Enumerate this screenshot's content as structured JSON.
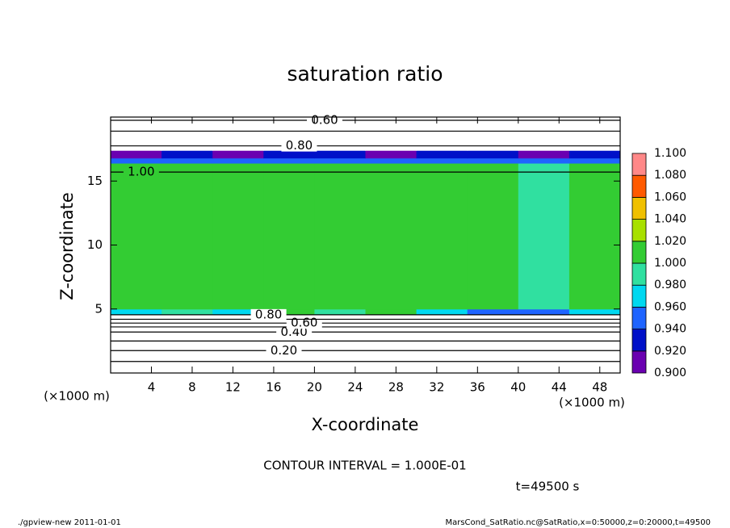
{
  "chart_data": {
    "type": "contour",
    "title": "saturation ratio",
    "xlabel": "X-coordinate",
    "ylabel": "Z-coordinate",
    "x_unit": "(×1000 m)",
    "y_unit": "(×1000 m)",
    "annotation": "CONTOUR INTERVAL = 1.000E-01",
    "time_label": "t=49500 s",
    "footer_left": "./gpview-new  2011-01-01",
    "footer_right": "MarsCond_SatRatio.nc@SatRatio,x=0:50000,z=0:20000,t=49500",
    "xlim": [
      0,
      50
    ],
    "ylim": [
      0,
      20
    ],
    "xticks": [
      4,
      8,
      12,
      16,
      20,
      24,
      28,
      32,
      36,
      40,
      44,
      48
    ],
    "yticks": [
      5,
      10,
      15
    ],
    "x_edges": [
      0,
      5,
      10,
      15,
      20,
      25,
      30,
      35,
      40,
      45,
      50
    ],
    "z_edges": [
      0,
      4.6,
      5,
      16.4,
      16.8,
      17.4,
      20
    ],
    "values": [
      [
        0.5,
        0.5,
        0.5,
        0.5,
        0.5,
        0.5,
        0.5,
        0.5,
        0.5,
        0.5
      ],
      [
        0.97,
        0.99,
        0.97,
        1.01,
        0.99,
        1.01,
        0.97,
        0.96,
        0.95,
        0.97
      ],
      [
        1.01,
        1.01,
        1.01,
        1.01,
        1.01,
        1.01,
        1.01,
        1.01,
        1.0,
        1.01
      ],
      [
        0.95,
        0.96,
        0.95,
        0.96,
        0.95,
        0.96,
        0.95,
        0.96,
        0.95,
        0.96
      ],
      [
        0.92,
        0.93,
        0.92,
        0.93,
        0.93,
        0.92,
        0.93,
        0.93,
        0.92,
        0.93
      ],
      [
        0.7,
        0.7,
        0.7,
        0.7,
        0.7,
        0.7,
        0.7,
        0.7,
        0.7,
        0.7
      ]
    ],
    "contours": {
      "levels": [
        0.1,
        0.2,
        0.3,
        0.4,
        0.5,
        0.6,
        0.7,
        0.8,
        1.0,
        0.8,
        0.7,
        0.6
      ],
      "z": [
        0.9,
        1.75,
        2.5,
        3.2,
        3.6,
        3.9,
        4.2,
        4.55,
        15.7,
        17.75,
        18.9,
        19.75
      ],
      "labels": [
        null,
        "0.20",
        null,
        "0.40",
        null,
        "0.60",
        null,
        "0.80",
        "1.00",
        "0.80",
        null,
        "0.60"
      ]
    },
    "colorbar": {
      "ticks": [
        {
          "value": 0.9,
          "label": "0.900"
        },
        {
          "value": 0.92,
          "label": "0.920"
        },
        {
          "value": 0.94,
          "label": "0.940"
        },
        {
          "value": 0.96,
          "label": "0.960"
        },
        {
          "value": 0.98,
          "label": "0.980"
        },
        {
          "value": 1.0,
          "label": "1.000"
        },
        {
          "value": 1.02,
          "label": "1.020"
        },
        {
          "value": 1.04,
          "label": "1.040"
        },
        {
          "value": 1.06,
          "label": "1.060"
        },
        {
          "value": 1.08,
          "label": "1.080"
        },
        {
          "value": 1.1,
          "label": "1.100"
        }
      ],
      "colors": [
        "#6a00b0",
        "#0010c8",
        "#1e64ff",
        "#00d8f0",
        "#30e0a0",
        "#33cc33",
        "#a8e000",
        "#f0c000",
        "#ff5a00",
        "#ff8888"
      ]
    }
  }
}
